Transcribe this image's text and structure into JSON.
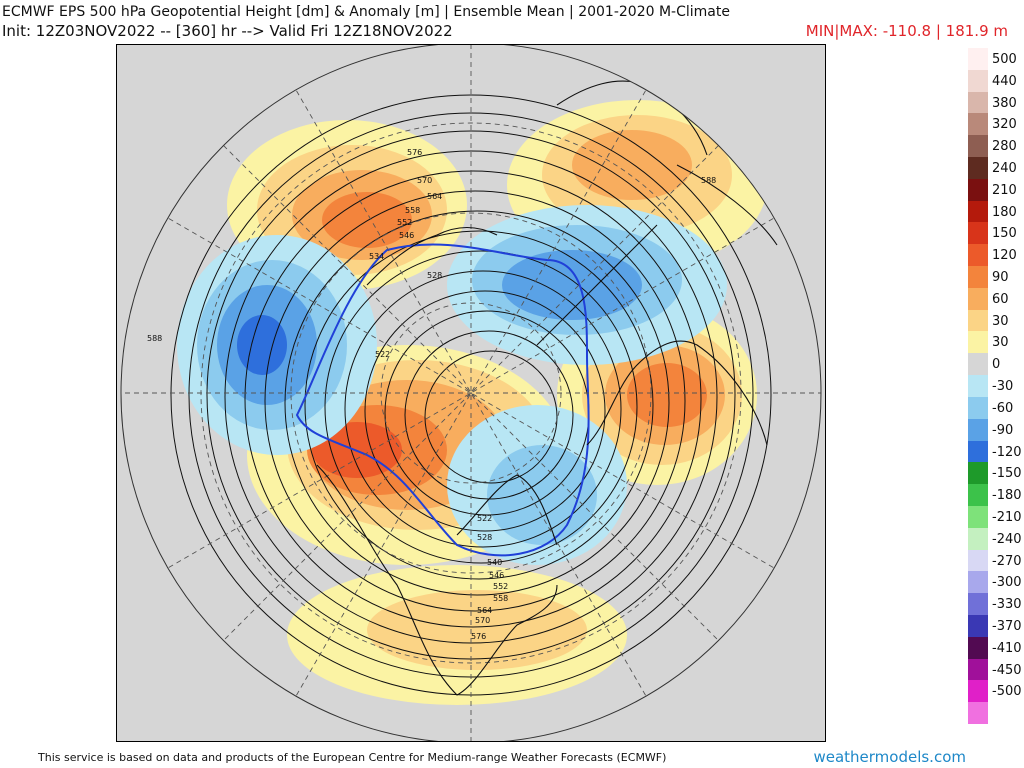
{
  "header": {
    "title": "ECMWF EPS 500 hPa Geopotential Height [dm] & Anomaly [m] | Ensemble Mean | 2001-2020 M-Climate",
    "init": "Init: 12Z03NOV2022 -- [360] hr --> Valid Fri 12Z18NOV2022",
    "minmax": "MIN|MAX: -110.8 | 181.9 m"
  },
  "legend": [
    {
      "label": "500",
      "color": "#fff0f0"
    },
    {
      "label": "440",
      "color": "#f0d8d2"
    },
    {
      "label": "380",
      "color": "#d9b6ab"
    },
    {
      "label": "320",
      "color": "#b9897a"
    },
    {
      "label": "280",
      "color": "#8e5e52"
    },
    {
      "label": "240",
      "color": "#5e2b20"
    },
    {
      "label": "210",
      "color": "#7a1010"
    },
    {
      "label": "180",
      "color": "#b41a0c"
    },
    {
      "label": "150",
      "color": "#d8341a"
    },
    {
      "label": "120",
      "color": "#ec5a2a"
    },
    {
      "label": "90",
      "color": "#f3843c"
    },
    {
      "label": "60",
      "color": "#f8ad5e"
    },
    {
      "label": "30",
      "color": "#fbd486"
    },
    {
      "label": "30",
      "color": "#fbf3a4"
    },
    {
      "label": "0",
      "color": "#d6d6d6"
    },
    {
      "label": "-30",
      "color": "#b8e6f4"
    },
    {
      "label": "-60",
      "color": "#8ccbee"
    },
    {
      "label": "-90",
      "color": "#5aa2e6"
    },
    {
      "label": "-120",
      "color": "#2e6fdc"
    },
    {
      "label": "-150",
      "color": "#1e9a2a"
    },
    {
      "label": "-180",
      "color": "#3cc24a"
    },
    {
      "label": "-210",
      "color": "#7ee27a"
    },
    {
      "label": "-240",
      "color": "#c4f0c0"
    },
    {
      "label": "-270",
      "color": "#d8d8f4"
    },
    {
      "label": "-300",
      "color": "#a8a8ec"
    },
    {
      "label": "-330",
      "color": "#7070d8"
    },
    {
      "label": "-370",
      "color": "#3a38b4"
    },
    {
      "label": "-410",
      "color": "#520a52"
    },
    {
      "label": "-450",
      "color": "#a0109a"
    },
    {
      "label": "-500",
      "color": "#e020c8"
    },
    {
      "label": "",
      "color": "#f070e0"
    }
  ],
  "contour_labels": [
    "576",
    "570",
    "564",
    "558",
    "552",
    "546",
    "534",
    "528",
    "522",
    "522",
    "528",
    "540",
    "546",
    "552",
    "558",
    "564",
    "570",
    "576",
    "588",
    "588"
  ],
  "footer": {
    "attribution": "This service is based on data and products of the European Centre for Medium-range Weather Forecasts (ECMWF)",
    "brand": "weathermodels.com"
  }
}
